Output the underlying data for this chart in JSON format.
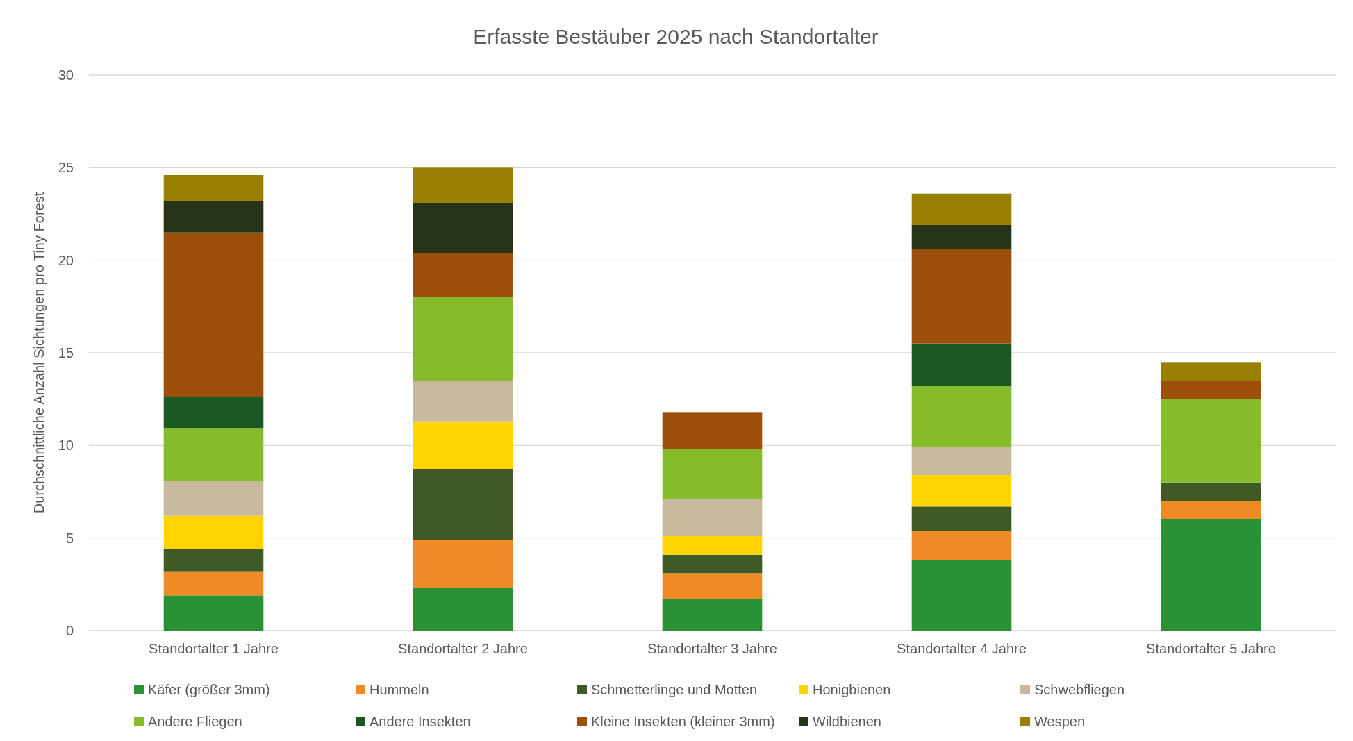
{
  "chart_data": {
    "type": "bar",
    "title": "Erfasste Bestäuber 2025 nach Standortalter",
    "ylabel": "Durchschnittliche Anzahl Sichtungen pro Tiny Forest",
    "categories": [
      "Standortalter 1 Jahre",
      "Standortalter 2 Jahre",
      "Standortalter 3 Jahre",
      "Standortalter 4 Jahre",
      "Standortalter 5 Jahre"
    ],
    "stacked": true,
    "ylim": [
      0,
      30
    ],
    "yticks": [
      0,
      5,
      10,
      15,
      20,
      25,
      30
    ],
    "grid": "y",
    "legend": "bottom",
    "series": [
      {
        "name": "Käfer (größer 3mm)",
        "color": "#2a9134",
        "values": [
          1.9,
          2.3,
          1.7,
          3.8,
          6.0
        ]
      },
      {
        "name": "Hummeln",
        "color": "#f08a24",
        "values": [
          1.3,
          2.6,
          1.4,
          1.6,
          1.0
        ]
      },
      {
        "name": "Schmetterlinge und Motten",
        "color": "#405a25",
        "values": [
          1.2,
          3.8,
          1.0,
          1.3,
          1.0
        ]
      },
      {
        "name": "Honigbienen",
        "color": "#ffd400",
        "values": [
          1.8,
          2.6,
          1.0,
          1.7,
          0
        ]
      },
      {
        "name": "Schwebfliegen",
        "color": "#c8b89d",
        "values": [
          1.9,
          2.2,
          2.0,
          1.5,
          0
        ]
      },
      {
        "name": "Andere Fliegen",
        "color": "#86bc29",
        "values": [
          2.8,
          4.5,
          2.7,
          3.3,
          4.5
        ]
      },
      {
        "name": "Andere Insekten",
        "color": "#1a5a22",
        "values": [
          1.7,
          0,
          0,
          2.3,
          0
        ]
      },
      {
        "name": "Kleine Insekten (kleiner 3mm)",
        "color": "#9c4f0b",
        "values": [
          8.9,
          2.4,
          2.0,
          5.1,
          1.0
        ]
      },
      {
        "name": "Wildbienen",
        "color": "#253317",
        "values": [
          1.7,
          2.7,
          0,
          1.3,
          0
        ]
      },
      {
        "name": "Wespen",
        "color": "#9a8000",
        "values": [
          1.4,
          1.9,
          0,
          1.7,
          1.0
        ]
      }
    ]
  }
}
